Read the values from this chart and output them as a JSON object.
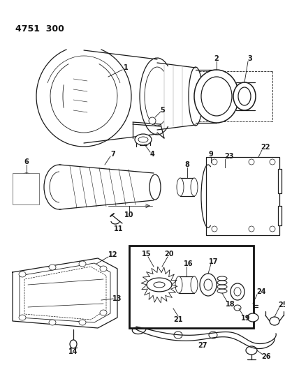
{
  "title": "4751  300",
  "bg": "#ffffff",
  "lc": "#1a1a1a",
  "fig_w": 4.08,
  "fig_h": 5.33,
  "dpi": 100
}
